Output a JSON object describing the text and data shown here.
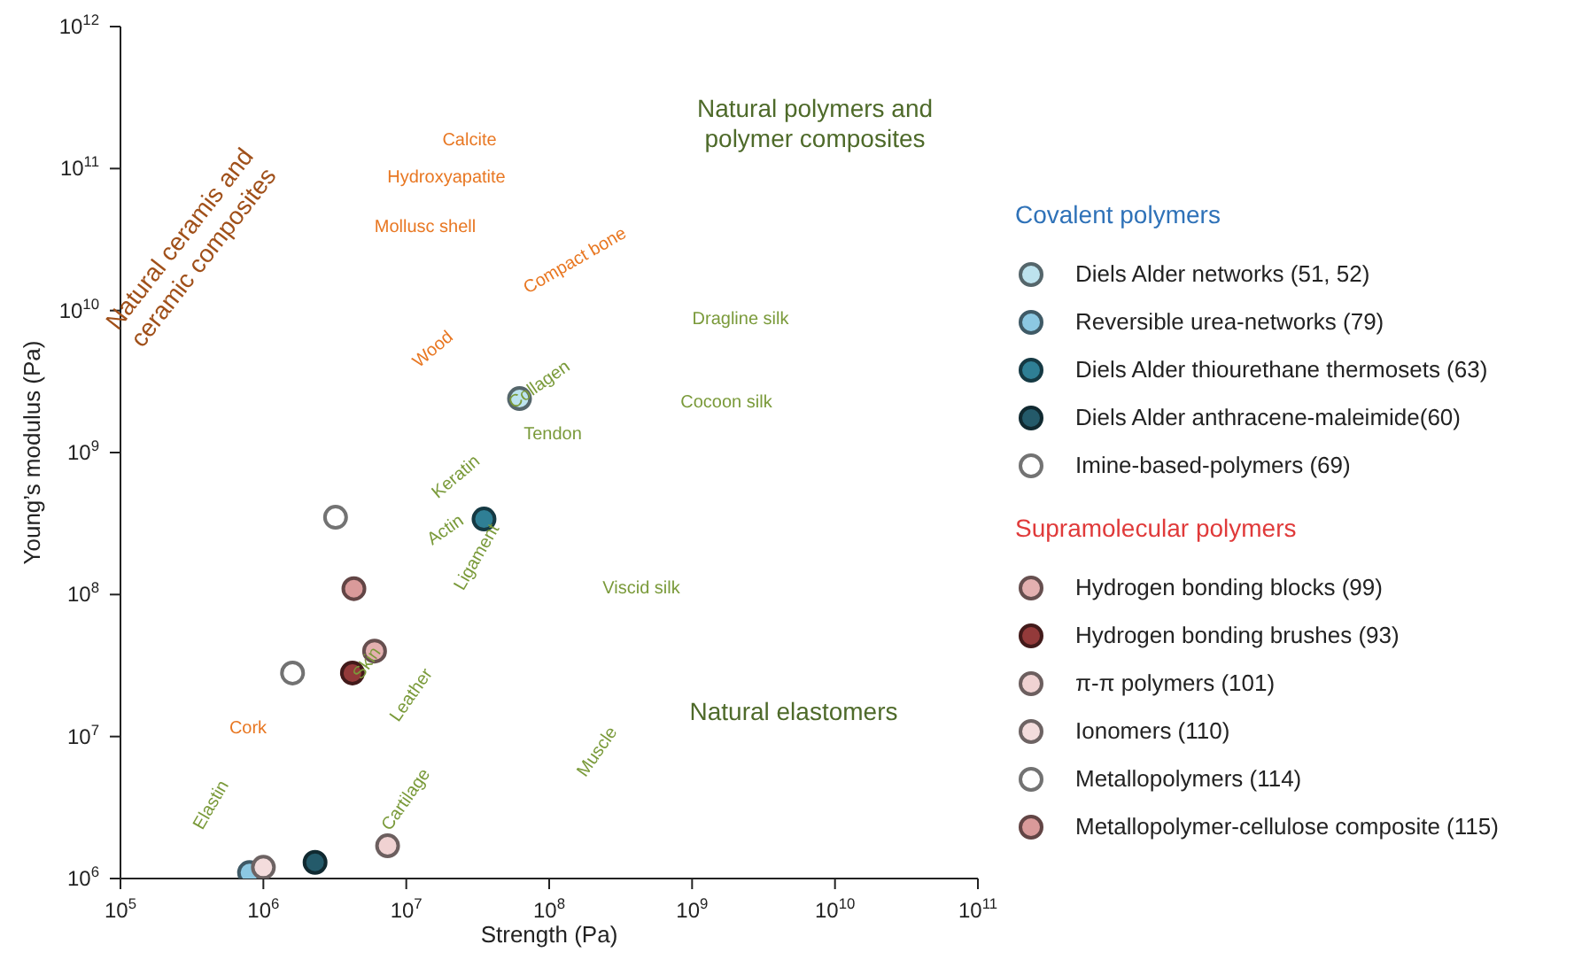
{
  "chart_data": {
    "type": "scatter",
    "xlabel": "Strength (Pa)",
    "ylabel": "Young’s modulus (Pa)",
    "log": "xy",
    "grid": false,
    "legend": "right",
    "marker": "circle",
    "xlim": [
      100000,
      100000000000
    ],
    "xticks": [
      {
        "value": 100000,
        "label": "10$^{5}$"
      },
      {
        "value": 1000000,
        "label": "10$^{6}$"
      },
      {
        "value": 10000000,
        "label": "10$^{7}$"
      },
      {
        "value": 100000000,
        "label": "10$^{8}$"
      },
      {
        "value": 1000000000,
        "label": "10$^{9}$"
      },
      {
        "value": 10000000000,
        "label": "10$^{10}$"
      },
      {
        "value": 100000000000,
        "label": "10$^{11}$"
      }
    ],
    "ylim": [
      1000000,
      1000000000000
    ],
    "yticks": [
      {
        "value": 1000000,
        "label": "10$^{6}$"
      },
      {
        "value": 10000000,
        "label": "10$^{7}$"
      },
      {
        "value": 100000000,
        "label": "10$^{8}$"
      },
      {
        "value": 1000000000,
        "label": "10$^{9}$"
      },
      {
        "value": 10000000000,
        "label": "10$^{10}$"
      },
      {
        "value": 100000000000,
        "label": "10$^{11}$"
      },
      {
        "value": 1000000000000,
        "label": "10$^{12}$"
      }
    ],
    "series": [
      {
        "name": "Diels Alder networks (51, 52)",
        "color": "#bde3ee",
        "x": [
          62000000
        ],
        "values": [
          2400000000
        ]
      },
      {
        "name": "Reversible urea-networks (79)",
        "color": "#8cc8e2",
        "x": [
          800000
        ],
        "values": [
          1100000
        ]
      },
      {
        "name": "Diels Alder thiourethane thermosets (63)",
        "color": "#2f7f95",
        "x": [
          35000000
        ],
        "values": [
          340000000
        ]
      },
      {
        "name": "Diels Alder anthracene-maleimide(60)",
        "color": "#245a6a",
        "x": [
          2300000
        ],
        "values": [
          1300000
        ]
      },
      {
        "name": "Imine-based-polymers (69)",
        "color": "#ffffff",
        "x": [
          3200000
        ],
        "values": [
          350000000
        ]
      },
      {
        "name": "Hydrogen bonding blocks (99)",
        "color": "#e3b0b0",
        "x": [
          6000000
        ],
        "values": [
          40000000
        ]
      },
      {
        "name": "Hydrogen bonding brushes (93)",
        "color": "#933a3a",
        "x": [
          4200000
        ],
        "values": [
          28000000
        ]
      },
      {
        "name": "π-π polymers (101)",
        "color": "#f0d2d2",
        "x": [
          7400000
        ],
        "values": [
          1700000
        ]
      },
      {
        "name": "Ionomers (110)",
        "color": "#f3dcdc",
        "x": [
          1000000
        ],
        "values": [
          1200000
        ]
      },
      {
        "name": "Metallopolymers (114)",
        "color": "#fefefe",
        "x": [
          1600000
        ],
        "values": [
          28000000
        ]
      },
      {
        "name": "Metallopolymer-cellulose composite (115)",
        "color": "#d99a9a",
        "x": [
          4300000
        ],
        "values": [
          110000000
        ]
      }
    ],
    "annotations": [
      "Covalent polymers",
      "Supramolecular polymers",
      "Natural ceramis and ceramic composites",
      "Natural polymers and polymer composites",
      "Natural elastomers",
      "Calcite",
      "Hydroxyapatite",
      "Mollusc shell",
      "Wood",
      "Compact bone",
      "Dragline silk",
      "Cocoon silk",
      "Collagen",
      "Tendon",
      "Keratin",
      "Actin",
      "Ligament",
      "Viscid silk",
      "Skin",
      "Leather",
      "Cork",
      "Muscle",
      "Elastin",
      "Cartilage"
    ]
  }
}
